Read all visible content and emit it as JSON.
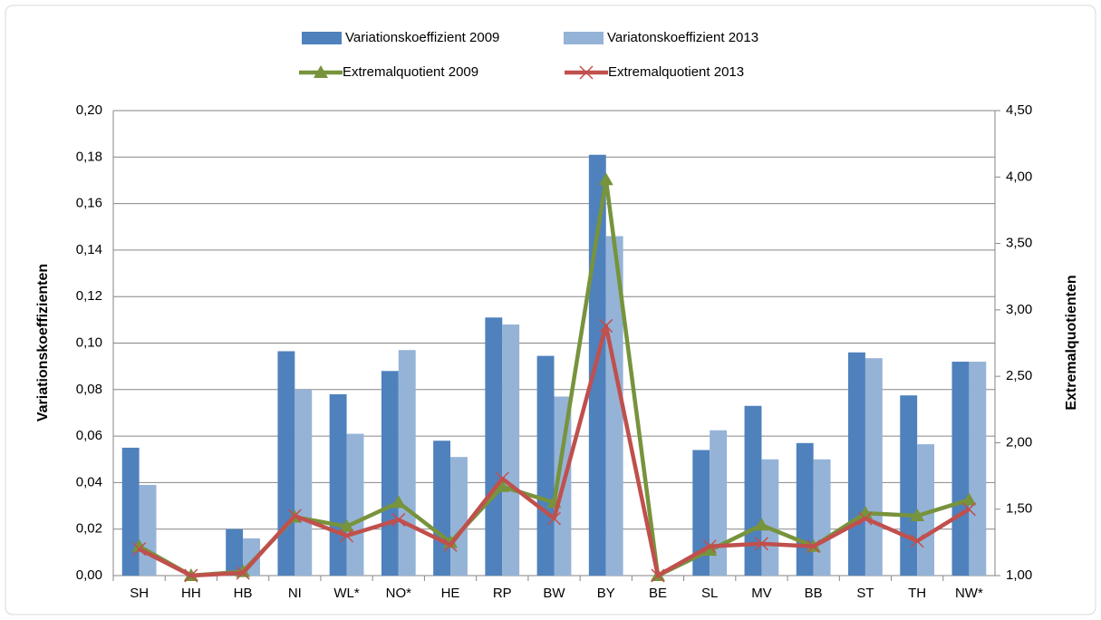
{
  "chart_data": {
    "type": "bar_line",
    "y_label": "Variationskoeffizienten",
    "y2_label": "Extremalquotienten",
    "categories": [
      "SH",
      "HH",
      "HB",
      "NI",
      "WL*",
      "NO*",
      "HE",
      "RP",
      "BW",
      "BY",
      "BE",
      "SL",
      "MV",
      "BB",
      "ST",
      "TH",
      "NW*"
    ],
    "series": [
      {
        "name": "Variationskoeffizient 2009",
        "type": "bar",
        "color": "#4f81bd",
        "values": [
          0.055,
          0,
          0.02,
          0.0965,
          0.078,
          0.088,
          0.058,
          0.111,
          0.0945,
          0.181,
          0,
          0.054,
          0.073,
          0.057,
          0.096,
          0.0775,
          0.092
        ]
      },
      {
        "name": "Variatonskoeffizient 2013",
        "type": "bar",
        "color": "#95b3d7",
        "values": [
          0.039,
          0,
          0.016,
          0.08,
          0.061,
          0.097,
          0.051,
          0.108,
          0.077,
          0.146,
          0,
          0.0625,
          0.05,
          0.05,
          0.0935,
          0.0565,
          0.092
        ]
      },
      {
        "name": "Extremalquotient 2009",
        "type": "line",
        "axis": "y2",
        "marker": "triangle",
        "color": "#77933c",
        "values": [
          1.22,
          1.0,
          1.03,
          1.44,
          1.37,
          1.55,
          1.25,
          1.67,
          1.55,
          3.98,
          1.0,
          1.19,
          1.38,
          1.22,
          1.47,
          1.45,
          1.57
        ]
      },
      {
        "name": "Extremalquotient 2013",
        "type": "line",
        "axis": "y2",
        "marker": "x",
        "color": "#c0504d",
        "values": [
          1.2,
          1.0,
          1.02,
          1.45,
          1.3,
          1.42,
          1.23,
          1.73,
          1.43,
          2.88,
          1.0,
          1.22,
          1.24,
          1.22,
          1.43,
          1.26,
          1.5
        ]
      }
    ],
    "ylim": [
      0,
      0.2
    ],
    "yticks": [
      {
        "value": 0,
        "label": "0,00"
      },
      {
        "value": 0.02,
        "label": "0,02"
      },
      {
        "value": 0.04,
        "label": "0,04"
      },
      {
        "value": 0.06,
        "label": "0,06"
      },
      {
        "value": 0.08,
        "label": "0,08"
      },
      {
        "value": 0.1,
        "label": "0,10"
      },
      {
        "value": 0.12,
        "label": "0,12"
      },
      {
        "value": 0.14,
        "label": "0,14"
      },
      {
        "value": 0.16,
        "label": "0,16"
      },
      {
        "value": 0.18,
        "label": "0,18"
      },
      {
        "value": 0.2,
        "label": "0,20"
      }
    ],
    "y2lim": [
      1,
      4.5
    ],
    "y2ticks": [
      {
        "value": 1,
        "label": "1,00"
      },
      {
        "value": 1.5,
        "label": "1,50"
      },
      {
        "value": 2,
        "label": "2,00"
      },
      {
        "value": 2.5,
        "label": "2,50"
      },
      {
        "value": 3,
        "label": "3,00"
      },
      {
        "value": 3.5,
        "label": "3,50"
      },
      {
        "value": 4,
        "label": "4,00"
      },
      {
        "value": 4.5,
        "label": "4,50"
      }
    ],
    "grid": true,
    "legend": "top"
  }
}
